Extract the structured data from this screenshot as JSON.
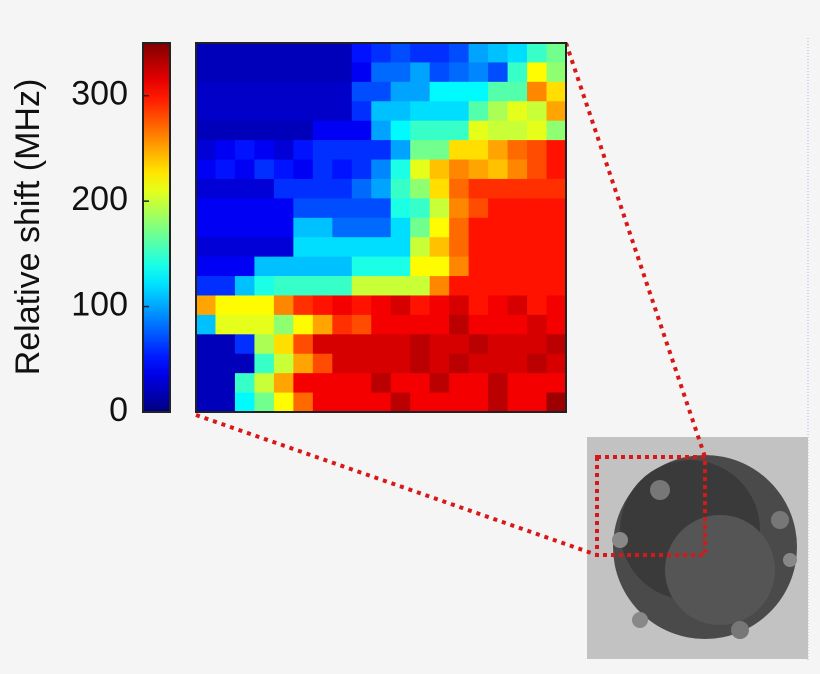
{
  "chart_data": {
    "type": "heatmap",
    "colormap": "jet",
    "ylabel": "Relative shift (MHz)",
    "ylim": [
      0,
      350
    ],
    "yticks": [
      0,
      100,
      200,
      300
    ],
    "z": [
      [
        20,
        20,
        20,
        20,
        20,
        20,
        20,
        20,
        50,
        60,
        70,
        60,
        60,
        70,
        100,
        110,
        120,
        150,
        170
      ],
      [
        20,
        20,
        20,
        20,
        20,
        20,
        20,
        20,
        40,
        80,
        80,
        100,
        70,
        80,
        90,
        70,
        150,
        220,
        180
      ],
      [
        25,
        25,
        25,
        25,
        25,
        25,
        25,
        25,
        70,
        70,
        100,
        100,
        130,
        130,
        130,
        160,
        160,
        260,
        230
      ],
      [
        25,
        25,
        25,
        25,
        25,
        25,
        25,
        25,
        60,
        110,
        110,
        120,
        120,
        120,
        160,
        190,
        210,
        200,
        250
      ],
      [
        20,
        20,
        20,
        20,
        20,
        20,
        40,
        40,
        40,
        100,
        130,
        150,
        150,
        150,
        210,
        200,
        200,
        210,
        180
      ],
      [
        30,
        40,
        50,
        40,
        30,
        50,
        60,
        60,
        60,
        60,
        100,
        170,
        170,
        230,
        230,
        250,
        270,
        280,
        300
      ],
      [
        40,
        50,
        40,
        60,
        50,
        40,
        60,
        50,
        60,
        90,
        140,
        210,
        240,
        260,
        250,
        240,
        260,
        280,
        300
      ],
      [
        30,
        30,
        30,
        30,
        60,
        60,
        60,
        60,
        80,
        100,
        150,
        180,
        230,
        270,
        290,
        290,
        290,
        290,
        290
      ],
      [
        40,
        40,
        40,
        40,
        40,
        70,
        70,
        70,
        70,
        70,
        140,
        150,
        200,
        260,
        280,
        300,
        300,
        300,
        300
      ],
      [
        40,
        40,
        40,
        40,
        40,
        110,
        110,
        80,
        80,
        80,
        120,
        170,
        220,
        270,
        300,
        300,
        300,
        300,
        300
      ],
      [
        30,
        30,
        30,
        30,
        30,
        120,
        120,
        120,
        120,
        120,
        120,
        200,
        240,
        270,
        300,
        300,
        300,
        300,
        300
      ],
      [
        40,
        40,
        40,
        110,
        110,
        110,
        110,
        110,
        140,
        140,
        140,
        220,
        220,
        260,
        300,
        300,
        300,
        300,
        300
      ],
      [
        60,
        60,
        110,
        140,
        150,
        150,
        150,
        150,
        200,
        200,
        200,
        200,
        260,
        300,
        300,
        300,
        300,
        300,
        300
      ],
      [
        250,
        220,
        220,
        220,
        260,
        290,
        300,
        310,
        300,
        310,
        320,
        300,
        310,
        320,
        300,
        310,
        320,
        300,
        310
      ],
      [
        110,
        210,
        210,
        210,
        180,
        220,
        250,
        290,
        280,
        310,
        310,
        310,
        310,
        330,
        310,
        310,
        310,
        320,
        310
      ],
      [
        20,
        20,
        60,
        190,
        230,
        280,
        320,
        320,
        320,
        320,
        320,
        330,
        320,
        320,
        330,
        320,
        320,
        320,
        330
      ],
      [
        20,
        20,
        20,
        150,
        200,
        250,
        280,
        320,
        320,
        320,
        320,
        330,
        320,
        330,
        320,
        320,
        320,
        330,
        320
      ],
      [
        20,
        20,
        150,
        200,
        250,
        310,
        310,
        310,
        310,
        330,
        310,
        310,
        330,
        310,
        310,
        330,
        310,
        310,
        310
      ],
      [
        20,
        20,
        130,
        170,
        220,
        270,
        310,
        310,
        310,
        310,
        330,
        310,
        310,
        310,
        310,
        330,
        310,
        310,
        340
      ]
    ]
  }
}
